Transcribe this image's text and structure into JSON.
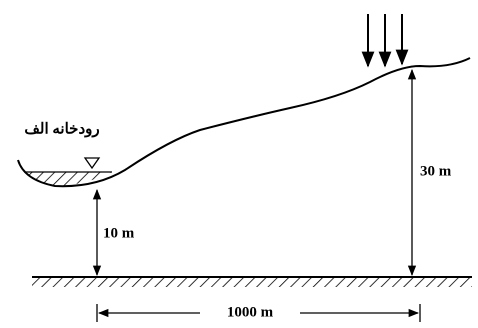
{
  "labels": {
    "river": "رودخانه الف",
    "left_height": "10 m",
    "right_height": "30 m",
    "distance": "1000 m"
  }
}
